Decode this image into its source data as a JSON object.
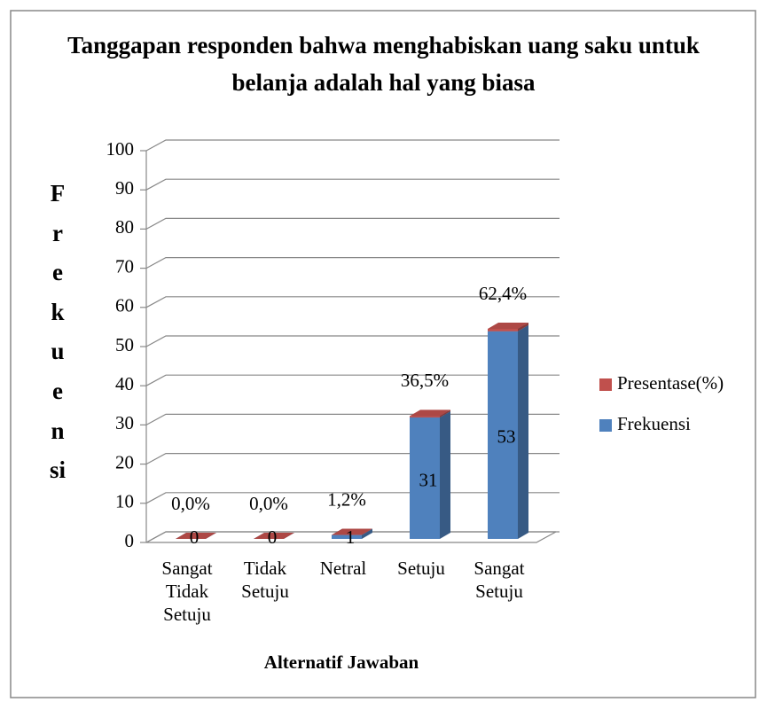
{
  "chart_data": {
    "type": "bar3d_stacked",
    "title": "Tanggapan responden  bahwa menghabiskan uang saku untuk belanja adalah hal yang biasa",
    "categories": [
      "Sangat Tidak Setuju",
      "Tidak Setuju",
      "Netral",
      "Setuju",
      "Sangat Setuju"
    ],
    "series": [
      {
        "name": "Frekuensi",
        "color": "#4f81bd",
        "values": [
          0,
          0,
          1,
          31,
          53
        ]
      },
      {
        "name": "Presentase(%)",
        "color": "#c0504d",
        "values": [
          0,
          0,
          0.012,
          0.365,
          0.624
        ],
        "value_labels": [
          "0,0%",
          "0,0%",
          "1,2%",
          "36,5%",
          "62,4%"
        ]
      }
    ],
    "ylim": [
      0,
      100
    ],
    "yticks": [
      0,
      10,
      20,
      30,
      40,
      50,
      60,
      70,
      80,
      90,
      100
    ],
    "y_label": "Frekuensi",
    "x_label": "Alternatif Jawaban",
    "grid": true,
    "legend": "right"
  }
}
